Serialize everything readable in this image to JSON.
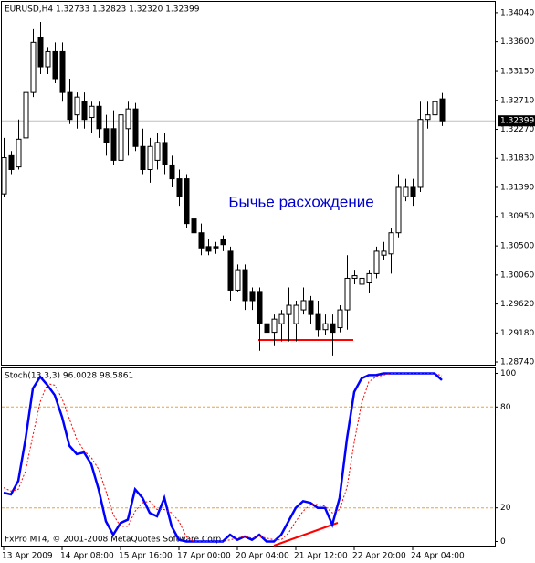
{
  "chart_data": [
    {
      "type": "candlestick",
      "title": "EURUSD,H4  1.32733 1.32823 1.32320 1.32399",
      "annotation": "Бычье расхождение",
      "ylim": [
        1.28685,
        1.34205
      ],
      "yticks": [
        {
          "value": 1.3404,
          "label": "1.34040"
        },
        {
          "value": 1.336,
          "label": "1.33600"
        },
        {
          "value": 1.3315,
          "label": "1.33150"
        },
        {
          "value": 1.3271,
          "label": "1.32710"
        },
        {
          "value": 1.3227,
          "label": "1.32270"
        },
        {
          "value": 1.3183,
          "label": "1.31830"
        },
        {
          "value": 1.3139,
          "label": "1.31390"
        },
        {
          "value": 1.3095,
          "label": "1.30950"
        },
        {
          "value": 1.305,
          "label": "1.30500"
        },
        {
          "value": 1.3006,
          "label": "1.30060"
        },
        {
          "value": 1.2962,
          "label": "1.29620"
        },
        {
          "value": 1.2918,
          "label": "1.29180"
        },
        {
          "value": 1.2874,
          "label": "1.28740"
        }
      ],
      "last_price": {
        "value": 1.32399,
        "label": "1.32399"
      },
      "color": "#000000",
      "open": [
        1.3129,
        1.3187,
        1.317,
        1.3214,
        1.3283,
        1.3366,
        1.3322,
        1.3345,
        1.3345,
        1.3283,
        1.3249,
        1.3269,
        1.3245,
        1.3262,
        1.3228,
        1.3228,
        1.318,
        1.3228,
        1.3258,
        1.3201,
        1.3166,
        1.318,
        1.3207,
        1.3173,
        1.3152,
        1.3152,
        1.3091,
        1.307,
        1.3049,
        1.3049,
        1.306,
        1.3042,
        1.2983,
        1.3014,
        1.2981,
        1.2981,
        1.2932,
        1.2919,
        1.2932,
        1.2946,
        1.2932,
        1.2953,
        1.2967,
        1.2946,
        1.2923,
        1.2932,
        1.2926,
        1.2953,
        1.3001,
        1.2992,
        1.2994,
        1.3008,
        1.3036,
        1.3038,
        1.307,
        1.3125,
        1.3139,
        1.3139,
        1.3242,
        1.3249,
        1.32733
      ],
      "high": [
        1.3214,
        1.3194,
        1.3242,
        1.3311,
        1.3379,
        1.339,
        1.3352,
        1.3359,
        1.3359,
        1.3304,
        1.3283,
        1.3283,
        1.3269,
        1.3269,
        1.3249,
        1.3256,
        1.3262,
        1.3269,
        1.3267,
        1.3228,
        1.3214,
        1.3221,
        1.3221,
        1.3187,
        1.3166,
        1.3159,
        1.3097,
        1.3084,
        1.306,
        1.3056,
        1.3066,
        1.3049,
        1.3022,
        1.3022,
        1.2987,
        1.2987,
        1.2939,
        1.2946,
        1.2953,
        1.2987,
        1.2967,
        1.2987,
        1.2974,
        1.2967,
        1.2946,
        1.2946,
        1.296,
        1.3036,
        1.3014,
        1.3008,
        1.3014,
        1.3049,
        1.3056,
        1.3077,
        1.3159,
        1.3152,
        1.3152,
        1.3269,
        1.3269,
        1.3297,
        1.32823
      ],
      "low": [
        1.3125,
        1.3159,
        1.3166,
        1.3207,
        1.3276,
        1.3311,
        1.3311,
        1.3297,
        1.3269,
        1.3235,
        1.3228,
        1.3228,
        1.3221,
        1.3214,
        1.3187,
        1.3173,
        1.3152,
        1.3187,
        1.3194,
        1.3159,
        1.3146,
        1.3166,
        1.3159,
        1.3139,
        1.3111,
        1.3077,
        1.3063,
        1.3036,
        1.3036,
        1.3038,
        1.3042,
        1.2967,
        1.2981,
        1.2953,
        1.2953,
        1.2891,
        1.2898,
        1.2898,
        1.2905,
        1.2905,
        1.2905,
        1.2946,
        1.2932,
        1.2912,
        1.2915,
        1.2884,
        1.2919,
        1.2923,
        1.2992,
        1.2987,
        1.2978,
        1.3001,
        1.3029,
        1.3008,
        1.3063,
        1.3118,
        1.3111,
        1.3132,
        1.3228,
        1.3235,
        1.3232
      ],
      "close": [
        1.3184,
        1.3166,
        1.3212,
        1.3283,
        1.3359,
        1.3322,
        1.3345,
        1.3304,
        1.3283,
        1.3242,
        1.3276,
        1.3242,
        1.3262,
        1.3228,
        1.3207,
        1.318,
        1.3249,
        1.3258,
        1.3201,
        1.3166,
        1.3201,
        1.3207,
        1.3173,
        1.3152,
        1.3125,
        1.3084,
        1.307,
        1.3047,
        1.3042,
        1.3047,
        1.3052,
        1.2983,
        1.3014,
        1.2967,
        1.2967,
        1.2932,
        1.2919,
        1.2939,
        1.2946,
        1.296,
        1.296,
        1.2967,
        1.2946,
        1.2923,
        1.2932,
        1.2919,
        1.2953,
        1.3001,
        1.3005,
        1.3001,
        1.3008,
        1.3042,
        1.3042,
        1.307,
        1.3139,
        1.3139,
        1.3125,
        1.3242,
        1.3249,
        1.3269,
        1.32399
      ]
    },
    {
      "type": "line",
      "title": "Stoch(13,3,3) 96.0028 98.5861",
      "annotation": "FxPro MT4, © 2001-2008 MetaQuotes Software Corp.",
      "ylim": [
        -3,
        103
      ],
      "yticks": [
        100,
        80,
        20,
        0
      ],
      "levels": [
        80,
        20
      ],
      "categories": [
        "13 Apr 2009",
        null,
        null,
        null,
        null,
        null,
        null,
        null,
        "14 Apr 08:00",
        null,
        null,
        null,
        null,
        null,
        null,
        null,
        "15 Apr 16:00",
        null,
        null,
        null,
        null,
        null,
        null,
        null,
        "17 Apr 00:00",
        null,
        null,
        null,
        null,
        null,
        null,
        null,
        "20 Apr 04:00",
        null,
        null,
        null,
        null,
        null,
        null,
        null,
        "21 Apr 12:00",
        null,
        null,
        null,
        null,
        null,
        null,
        null,
        "22 Apr 20:00",
        null,
        null,
        null,
        null,
        null,
        null,
        null,
        "24 Apr 04:00",
        null,
        null,
        null,
        null
      ],
      "series": [
        {
          "color": "#0000ff",
          "values": [
            29,
            28,
            36,
            61,
            91,
            98,
            93,
            87,
            74,
            57,
            52,
            53,
            46,
            31,
            12,
            4,
            11,
            13,
            31,
            26,
            17,
            15,
            26,
            9,
            1,
            0,
            0,
            0,
            0,
            0,
            0,
            4,
            1,
            3,
            1,
            4,
            0,
            0,
            4,
            12,
            20,
            24,
            23,
            20,
            20,
            10,
            26,
            61,
            89,
            97,
            99,
            99,
            100,
            100,
            100,
            100,
            100,
            100,
            100,
            100,
            96.0028
          ]
        },
        {
          "color": "#ff0000",
          "values": [
            32,
            30,
            31,
            42,
            63,
            83,
            94,
            93,
            85,
            73,
            61,
            54,
            50,
            43,
            30,
            16,
            9,
            9,
            18,
            23,
            24,
            19,
            19,
            17,
            12,
            3,
            0,
            0,
            0,
            0,
            0,
            1,
            2,
            3,
            2,
            3,
            2,
            1,
            1,
            5,
            12,
            18,
            22,
            22,
            21,
            17,
            19,
            32,
            59,
            82,
            95,
            98,
            99,
            100,
            100,
            100,
            100,
            100,
            100,
            100,
            98.5861
          ]
        }
      ]
    }
  ]
}
